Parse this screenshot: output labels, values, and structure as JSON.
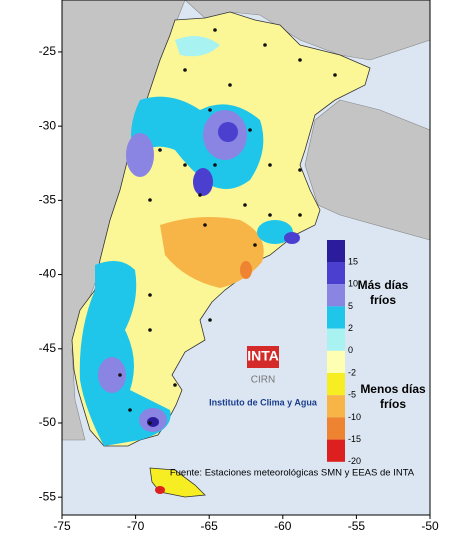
{
  "map": {
    "xlim": [
      -75,
      -50
    ],
    "ylim": [
      -56.2,
      -21.5
    ],
    "xticks": [
      -75,
      -70,
      -65,
      -60,
      -55,
      -50
    ],
    "yticks": [
      -25,
      -30,
      -35,
      -40,
      -45,
      -50,
      -55
    ]
  },
  "legend": {
    "labels": [
      15,
      10,
      5,
      2,
      0,
      -2,
      -5,
      -10,
      -15,
      -20
    ],
    "colors": [
      "#2b1c9c",
      "#4b3fd0",
      "#8a84e2",
      "#1fc6ea",
      "#a8f2f2",
      "#ffffb4",
      "#f6ee22",
      "#f7b447",
      "#ee8431",
      "#dd1f1f"
    ]
  },
  "annotations": {
    "more": "Más días fríos",
    "less": "Menos días fríos"
  },
  "logo": {
    "title": "INTA",
    "subtitle": "CIRN",
    "institute": "Instituto de Clima y Agua"
  },
  "source": "Fuente: Estaciones meteorológicas SMN y EEAS de INTA"
}
